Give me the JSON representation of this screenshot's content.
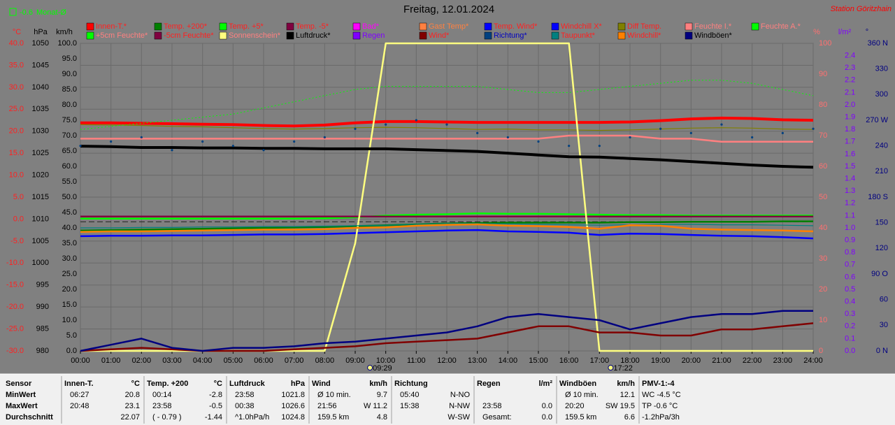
{
  "chart_data": {
    "type": "line",
    "title": "Freitag, 12.01.2024",
    "station": "Station Göritzhain",
    "monthly_avg": -0.6,
    "monthly_avg_label": "Monat-Ø",
    "x": [
      0,
      1,
      2,
      3,
      4,
      5,
      6,
      7,
      8,
      9,
      10,
      11,
      12,
      13,
      14,
      15,
      16,
      17,
      18,
      19,
      20,
      21,
      22,
      23,
      24
    ],
    "xlim": [
      0,
      24
    ],
    "xticks": [
      {
        "value": 0,
        "label": "00:00"
      },
      {
        "value": 1,
        "label": "01:00"
      },
      {
        "value": 2,
        "label": "02:00"
      },
      {
        "value": 3,
        "label": "03:00"
      },
      {
        "value": 4,
        "label": "04:00"
      },
      {
        "value": 5,
        "label": "05:00"
      },
      {
        "value": 6,
        "label": "06:00"
      },
      {
        "value": 7,
        "label": "07:00"
      },
      {
        "value": 8,
        "label": "08:00"
      },
      {
        "value": 9,
        "label": "09:00"
      },
      {
        "value": 10,
        "label": "10:00"
      },
      {
        "value": 11,
        "label": "11:00"
      },
      {
        "value": 12,
        "label": "12:00"
      },
      {
        "value": 13,
        "label": "13:00"
      },
      {
        "value": 14,
        "label": "14:00"
      },
      {
        "value": 15,
        "label": "15:00"
      },
      {
        "value": 16,
        "label": "16:00"
      },
      {
        "value": 17,
        "label": "17:00"
      },
      {
        "value": 18,
        "label": "18:00"
      },
      {
        "value": 19,
        "label": "19:00"
      },
      {
        "value": 20,
        "label": "20:00"
      },
      {
        "value": 21,
        "label": "21:00"
      },
      {
        "value": 22,
        "label": "22:00"
      },
      {
        "value": 23,
        "label": "23:00"
      },
      {
        "value": 24,
        "label": "24:00"
      }
    ],
    "sun": [
      {
        "value": 9.483,
        "label": "09:29"
      },
      {
        "value": 17.367,
        "label": "17:22"
      }
    ],
    "grid": true,
    "axes": {
      "temp": {
        "unit": "°C",
        "color": "#ff2020",
        "lim": [
          -30,
          40
        ],
        "ticks": [
          {
            "value": -30,
            "label": "-30.0"
          },
          {
            "value": -25,
            "label": "-25.0"
          },
          {
            "value": -20,
            "label": "-20.0"
          },
          {
            "value": -15,
            "label": "-15.0"
          },
          {
            "value": -10,
            "label": "-10.0"
          },
          {
            "value": -5,
            "label": "-5.0"
          },
          {
            "value": 0,
            "label": "0.0"
          },
          {
            "value": 5,
            "label": "5.0"
          },
          {
            "value": 10,
            "label": "10.0"
          },
          {
            "value": 15,
            "label": "15.0"
          },
          {
            "value": 20,
            "label": "20.0"
          },
          {
            "value": 25,
            "label": "25.0"
          },
          {
            "value": 30,
            "label": "30.0"
          },
          {
            "value": 35,
            "label": "35.0"
          },
          {
            "value": 40,
            "label": "40.0"
          }
        ]
      },
      "pressure": {
        "unit": "hPa",
        "color": "#000000",
        "lim": [
          980,
          1050
        ],
        "ticks": [
          980,
          985,
          990,
          995,
          1000,
          1005,
          1010,
          1015,
          1020,
          1025,
          1030,
          1035,
          1040,
          1045,
          1050
        ]
      },
      "wind": {
        "unit": "km/h",
        "color": "#000000",
        "lim": [
          0,
          100
        ],
        "ticks": [
          {
            "value": 0,
            "label": "0.0"
          },
          {
            "value": 5,
            "label": "5.0"
          },
          {
            "value": 10,
            "label": "10.0"
          },
          {
            "value": 15,
            "label": "15.0"
          },
          {
            "value": 20,
            "label": "20.0"
          },
          {
            "value": 25,
            "label": "25.0"
          },
          {
            "value": 30,
            "label": "30.0"
          },
          {
            "value": 35,
            "label": "35.0"
          },
          {
            "value": 40,
            "label": "40.0"
          },
          {
            "value": 45,
            "label": "45.0"
          },
          {
            "value": 50,
            "label": "50.0"
          },
          {
            "value": 55,
            "label": "55.0"
          },
          {
            "value": 60,
            "label": "60.0"
          },
          {
            "value": 65,
            "label": "65.0"
          },
          {
            "value": 70,
            "label": "70.0"
          },
          {
            "value": 75,
            "label": "75.0"
          },
          {
            "value": 80,
            "label": "80.0"
          },
          {
            "value": 85,
            "label": "85.0"
          },
          {
            "value": 90,
            "label": "90.0"
          },
          {
            "value": 95,
            "label": "95.0"
          },
          {
            "value": 100,
            "label": "100.0"
          }
        ]
      },
      "humidity": {
        "unit": "%",
        "color": "#ff7070",
        "lim": [
          0,
          100
        ],
        "ticks": [
          0,
          10,
          20,
          30,
          40,
          50,
          60,
          70,
          80,
          90,
          100
        ]
      },
      "rain": {
        "unit": "l/m²",
        "color": "#8000ff",
        "lim": [
          0,
          2.5
        ],
        "ticks": [
          {
            "value": 0,
            "label": "0.0"
          },
          0.1,
          0.2,
          0.3,
          0.4,
          0.5,
          0.6,
          0.7,
          0.8,
          0.9,
          {
            "value": 1,
            "label": "1.0"
          },
          1.1,
          1.2,
          1.3,
          1.4,
          1.5,
          1.6,
          1.7,
          1.8,
          1.9,
          {
            "value": 2,
            "label": "2.0"
          },
          2.1,
          2.2,
          2.3,
          2.4
        ]
      },
      "direction": {
        "unit": "°",
        "color": "#000080",
        "lim": [
          0,
          360
        ],
        "ticks": [
          {
            "value": 0,
            "label": "0 N"
          },
          30,
          60,
          {
            "value": 90,
            "label": "90 O"
          },
          120,
          150,
          {
            "value": 180,
            "label": "180 S"
          },
          210,
          240,
          {
            "value": 270,
            "label": "270 W"
          },
          300,
          330,
          {
            "value": 360,
            "label": "360 N"
          }
        ]
      }
    },
    "series": [
      {
        "name": "Innen-T.*",
        "color": "#ff0000",
        "text_color": "#ff2020",
        "axis": "temp",
        "style": "thick",
        "values": [
          21.9,
          21.9,
          21.8,
          21.7,
          21.6,
          21.5,
          21.3,
          21.2,
          21.4,
          21.9,
          22.2,
          22.2,
          22.1,
          22.0,
          22.0,
          22.0,
          22.0,
          22.0,
          22.1,
          22.4,
          22.8,
          23.0,
          22.9,
          22.6,
          22.5
        ]
      },
      {
        "name": "Temp. +200*",
        "color": "#008000",
        "text_color": "#ff2020",
        "axis": "temp",
        "style": "medium",
        "values": [
          -2.6,
          -2.5,
          -2.4,
          -2.3,
          -2.2,
          -2.1,
          -2.0,
          -1.9,
          -1.8,
          -1.6,
          -1.4,
          -1.2,
          -1.0,
          -0.9,
          -0.8,
          -0.8,
          -0.8,
          -0.8,
          -0.7,
          -0.7,
          -0.6,
          -0.6,
          -0.6,
          -0.5,
          -0.5
        ]
      },
      {
        "name": "Temp. +5*",
        "color": "#00ff00",
        "text_color": "#ff2020",
        "axis": "temp",
        "style": "medium",
        "values": [
          0.1,
          0.1,
          0.1,
          0.1,
          0.1,
          0.1,
          0.1,
          0.1,
          0.2,
          0.4,
          0.8,
          1.0,
          1.1,
          1.3,
          1.2,
          1.2,
          1.1,
          1.0,
          0.9,
          0.9,
          0.8,
          0.8,
          0.8,
          0.8,
          0.8
        ]
      },
      {
        "name": "Temp. -5*",
        "color": "#800040",
        "text_color": "#ff2020",
        "axis": "temp",
        "style": "medium",
        "values": [
          0.6,
          0.6,
          0.6,
          0.6,
          0.6,
          0.6,
          0.6,
          0.6,
          0.6,
          0.6,
          0.6,
          0.6,
          0.6,
          0.6,
          0.6,
          0.6,
          0.6,
          0.6,
          0.6,
          0.6,
          0.6,
          0.6,
          0.6,
          0.6,
          0.6
        ]
      },
      {
        "name": "Bad*",
        "color": "#ff00ff",
        "text_color": "#ff00ff",
        "axis": "temp"
      },
      {
        "name": "Gast Temp*",
        "color": "#ff8040",
        "text_color": "#ff8040",
        "axis": "temp"
      },
      {
        "name": "Temp. Wind*",
        "color": "#0000ff",
        "text_color": "#ff2020",
        "axis": "temp"
      },
      {
        "name": "Windchill X*",
        "color": "#0000ff",
        "text_color": "#ff2020",
        "axis": "temp",
        "style": "medium",
        "values": [
          -3.9,
          -3.8,
          -3.8,
          -3.7,
          -3.7,
          -3.6,
          -3.5,
          -3.5,
          -3.4,
          -3.2,
          -3.0,
          -2.8,
          -2.6,
          -2.5,
          -2.8,
          -2.9,
          -3.1,
          -3.6,
          -3.3,
          -3.4,
          -3.6,
          -3.8,
          -3.9,
          -4.1,
          -4.4
        ]
      },
      {
        "name": "Diff Temp.",
        "color": "#808000",
        "text_color": "#ff2020",
        "axis": "temp",
        "style": "thin",
        "values": [
          21.5,
          21.4,
          21.3,
          21.1,
          21.0,
          20.8,
          20.6,
          20.5,
          20.6,
          20.8,
          20.9,
          20.8,
          20.6,
          20.4,
          20.5,
          20.3,
          20.3,
          20.2,
          20.3,
          20.5,
          20.7,
          20.8,
          20.7,
          20.5,
          20.4
        ]
      },
      {
        "name": "Feuchte I.*",
        "color": "#ff8080",
        "text_color": "#ff8080",
        "axis": "humidity",
        "style": "medium",
        "values": [
          69,
          69,
          69,
          69,
          69,
          69,
          69,
          69,
          69,
          69,
          69,
          69,
          69,
          69,
          69,
          69,
          70,
          70,
          70,
          69,
          69,
          68,
          68,
          68,
          68
        ]
      },
      {
        "name": "Feuchte A.*",
        "color": "#00ff00",
        "text_color": "#ff8080",
        "axis": "humidity",
        "style": "dotted",
        "values": [
          72,
          73,
          74,
          75,
          76,
          77,
          79,
          81,
          83,
          85,
          86,
          86,
          86,
          86,
          85,
          84,
          84,
          85,
          86,
          87,
          88,
          88,
          87,
          85,
          83
        ]
      },
      {
        "name": "+5cm Feuchte*",
        "color": "#00ff00",
        "text_color": "#ff8080",
        "axis": "humidity"
      },
      {
        "name": "-5cm Feuchte*",
        "color": "#800040",
        "text_color": "#ff2020",
        "axis": "humidity"
      },
      {
        "name": "Sonnenschein*",
        "color": "#ffff80",
        "text_color": "#ff8080",
        "axis": "humidity",
        "style": "medium",
        "values": [
          0,
          0,
          0,
          0,
          0,
          0,
          0,
          0,
          0,
          35,
          100,
          100,
          100,
          100,
          100,
          100,
          100,
          0,
          0,
          0,
          0,
          0,
          0,
          0,
          0
        ]
      },
      {
        "name": "Luftdruck*",
        "color": "#000000",
        "text_color": "#000000",
        "axis": "pressure",
        "style": "thick",
        "values": [
          1026.6,
          1026.5,
          1026.3,
          1026.3,
          1026.2,
          1026.2,
          1026.1,
          1026.1,
          1026.0,
          1026.0,
          1026.0,
          1025.8,
          1025.6,
          1025.4,
          1025.0,
          1024.6,
          1024.2,
          1024.1,
          1023.8,
          1023.5,
          1023.1,
          1022.7,
          1022.3,
          1022.0,
          1021.8
        ]
      },
      {
        "name": "Regen",
        "color": "#8000ff",
        "text_color": "#8000ff",
        "axis": "rain"
      },
      {
        "name": "Wind*",
        "color": "#800000",
        "text_color": "#ff2020",
        "axis": "wind",
        "style": "medium",
        "values": [
          0,
          0.5,
          1,
          0.5,
          0,
          0,
          0,
          0.5,
          1,
          1.5,
          2.5,
          3,
          3.5,
          4,
          6,
          8,
          8,
          6,
          6,
          5,
          5,
          7,
          7,
          8,
          9
        ]
      },
      {
        "name": "Richtung*",
        "color": "#004080",
        "text_color": "#0000c0",
        "axis": "direction",
        "style": "dots",
        "values": [
          240,
          245,
          250,
          235,
          245,
          240,
          235,
          245,
          250,
          260,
          265,
          270,
          265,
          255,
          250,
          245,
          240,
          240,
          250,
          260,
          255,
          265,
          250,
          255,
          260
        ]
      },
      {
        "name": "Taupunkt*",
        "color": "#008080",
        "text_color": "#ff2020",
        "axis": "temp",
        "style": "thin",
        "values": [
          -2.0,
          -2.0,
          -1.9,
          -1.9,
          -1.8,
          -1.8,
          -1.7,
          -1.7,
          -1.6,
          -1.5,
          -1.4,
          -1.2,
          -1.0,
          -1.0,
          -1.1,
          -1.2,
          -1.3,
          -1.4,
          -1.3,
          -1.2,
          -1.2,
          -1.3,
          -1.3,
          -1.4,
          -1.5
        ]
      },
      {
        "name": "Windchill*",
        "color": "#ff8000",
        "text_color": "#ff2020",
        "axis": "temp",
        "style": "medium",
        "values": [
          -2.9,
          -2.8,
          -2.8,
          -2.7,
          -2.6,
          -2.5,
          -2.4,
          -2.4,
          -2.3,
          -2.0,
          -1.9,
          -1.5,
          -1.3,
          -1.2,
          -1.5,
          -1.6,
          -1.8,
          -2.2,
          -1.4,
          -1.5,
          -2.2,
          -2.4,
          -2.5,
          -2.6,
          -2.8
        ]
      },
      {
        "name": "Windböen*",
        "color": "#000080",
        "text_color": "#000000",
        "axis": "wind",
        "style": "medium",
        "values": [
          0,
          2,
          4,
          1,
          0,
          1,
          1,
          1.5,
          2.5,
          3,
          4,
          5,
          6,
          8,
          11,
          12,
          11,
          10,
          7,
          9,
          11,
          12,
          12,
          13,
          13
        ]
      }
    ]
  },
  "table": {
    "blocks": [
      {
        "header": [
          "Sensor"
        ],
        "rows": [
          [
            "MinWert"
          ],
          [
            "MaxWert"
          ],
          [
            "Durchschnitt"
          ]
        ],
        "align": "label"
      },
      {
        "header": [
          "Innen-T.",
          "°C"
        ],
        "rows": [
          [
            "06:27",
            "20.8"
          ],
          [
            "20:48",
            "23.1"
          ],
          [
            "22.07"
          ]
        ]
      },
      {
        "header": [
          "Temp. +200",
          "°C"
        ],
        "rows": [
          [
            "00:14",
            "-2.8"
          ],
          [
            "23:58",
            "-0.5"
          ],
          [
            "( - 0.79 )",
            "-1.44"
          ]
        ]
      },
      {
        "header": [
          "Luftdruck",
          "hPa"
        ],
        "rows": [
          [
            "23:58",
            "1021.8"
          ],
          [
            "00:38",
            "1026.6"
          ],
          [
            "^1.0hPa/h",
            "1024.8"
          ]
        ]
      },
      {
        "header": [
          "Wind",
          "km/h"
        ],
        "rows": [
          [
            "Ø 10 min.",
            "9.7"
          ],
          [
            "21:56",
            "W 11.2"
          ],
          [
            "159.5 km",
            "4.8"
          ]
        ]
      },
      {
        "header": [
          "Richtung"
        ],
        "rows": [
          [
            "05:40",
            "N-NO"
          ],
          [
            "15:38",
            "N-NW"
          ],
          [
            "W-SW"
          ]
        ]
      },
      {
        "header": [
          "Regen",
          "l/m²"
        ],
        "rows": [
          [],
          [
            "23:58",
            "0.0"
          ],
          [
            "Gesamt:",
            "0.0"
          ]
        ]
      },
      {
        "header": [
          "Windböen",
          "km/h"
        ],
        "rows": [
          [
            "Ø 10 min.",
            "12.1"
          ],
          [
            "20:20",
            "SW 19.5"
          ],
          [
            "159.5 km",
            "6.6"
          ]
        ]
      },
      {
        "header": [
          "PMV-1:-4"
        ],
        "rows": [
          [
            "WC -4.5 °C"
          ],
          [
            "TP -0.6 °C"
          ],
          [
            "-1.2hPa/3h"
          ]
        ],
        "align": "label"
      }
    ]
  }
}
